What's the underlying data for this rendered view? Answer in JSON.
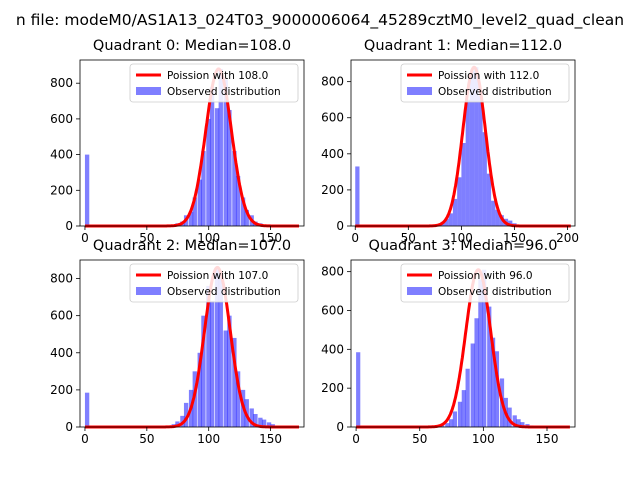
{
  "suptitle": "n file: modeM0/AS1A13_024T03_9000006064_45289cztM0_level2_quad_clean",
  "colors": {
    "fit": "#ff0000",
    "hist": "#0000ff",
    "axis": "#000000",
    "legend_border": "#cccccc"
  },
  "chart_data": [
    {
      "type": "bar",
      "title": "Quadrant 0: Median=108.0",
      "xlim": [
        -4,
        177
      ],
      "ylim": [
        0,
        930
      ],
      "xticks": [
        0,
        50,
        100,
        150
      ],
      "yticks": [
        0,
        200,
        400,
        600,
        800
      ],
      "grid": false,
      "legend_position": "upper right",
      "series": [
        {
          "name": "Poission with 108.0",
          "kind": "line",
          "mean": 108.0,
          "peak": 880
        },
        {
          "name": "Observed distribution",
          "kind": "histogram",
          "bin_width": 3.5,
          "bins": [
            [
              0,
              400
            ],
            [
              66,
              4
            ],
            [
              70,
              7
            ],
            [
              73,
              15
            ],
            [
              77,
              25
            ],
            [
              80,
              60
            ],
            [
              84,
              80
            ],
            [
              87,
              160
            ],
            [
              91,
              260
            ],
            [
              94,
              420
            ],
            [
              98,
              600
            ],
            [
              101,
              780
            ],
            [
              105,
              660
            ],
            [
              108,
              880
            ],
            [
              112,
              820
            ],
            [
              115,
              650
            ],
            [
              119,
              420
            ],
            [
              122,
              280
            ],
            [
              126,
              160
            ],
            [
              129,
              90
            ],
            [
              133,
              60
            ],
            [
              136,
              25
            ],
            [
              140,
              15
            ],
            [
              143,
              8
            ],
            [
              147,
              4
            ],
            [
              150,
              2
            ]
          ]
        }
      ]
    },
    {
      "type": "bar",
      "title": "Quadrant 1: Median=112.0",
      "xlim": [
        -4,
        207
      ],
      "ylim": [
        0,
        920
      ],
      "xticks": [
        0,
        50,
        100,
        150,
        200
      ],
      "yticks": [
        0,
        200,
        400,
        600,
        800
      ],
      "grid": false,
      "legend_position": "upper right",
      "series": [
        {
          "name": "Poission with 112.0",
          "kind": "line",
          "mean": 112.0,
          "peak": 880
        },
        {
          "name": "Observed distribution",
          "kind": "histogram",
          "bin_width": 4,
          "bins": [
            [
              0,
              330
            ],
            [
              68,
              4
            ],
            [
              72,
              6
            ],
            [
              76,
              10
            ],
            [
              80,
              20
            ],
            [
              84,
              40
            ],
            [
              88,
              70
            ],
            [
              92,
              150
            ],
            [
              96,
              270
            ],
            [
              100,
              460
            ],
            [
              104,
              700
            ],
            [
              108,
              860
            ],
            [
              112,
              880
            ],
            [
              116,
              720
            ],
            [
              120,
              520
            ],
            [
              124,
              290
            ],
            [
              128,
              140
            ],
            [
              132,
              90
            ],
            [
              136,
              60
            ],
            [
              140,
              40
            ],
            [
              144,
              30
            ],
            [
              148,
              15
            ],
            [
              152,
              8
            ],
            [
              156,
              4
            ],
            [
              160,
              2
            ]
          ]
        }
      ]
    },
    {
      "type": "bar",
      "title": "Quadrant 2: Median=107.0",
      "xlim": [
        -4,
        177
      ],
      "ylim": [
        0,
        900
      ],
      "xticks": [
        0,
        50,
        100,
        150
      ],
      "yticks": [
        0,
        200,
        400,
        600,
        800
      ],
      "grid": false,
      "legend_position": "upper right",
      "series": [
        {
          "name": "Poission with 107.0",
          "kind": "line",
          "mean": 107.0,
          "peak": 860
        },
        {
          "name": "Observed distribution",
          "kind": "histogram",
          "bin_width": 3.5,
          "bins": [
            [
              0,
              185
            ],
            [
              62,
              5
            ],
            [
              66,
              8
            ],
            [
              70,
              15
            ],
            [
              73,
              30
            ],
            [
              77,
              60
            ],
            [
              80,
              130
            ],
            [
              84,
              200
            ],
            [
              87,
              300
            ],
            [
              91,
              400
            ],
            [
              94,
              600
            ],
            [
              98,
              760
            ],
            [
              101,
              680
            ],
            [
              105,
              860
            ],
            [
              108,
              800
            ],
            [
              112,
              520
            ],
            [
              115,
              600
            ],
            [
              119,
              480
            ],
            [
              122,
              300
            ],
            [
              126,
              200
            ],
            [
              129,
              150
            ],
            [
              133,
              100
            ],
            [
              136,
              70
            ],
            [
              140,
              50
            ],
            [
              143,
              40
            ],
            [
              147,
              25
            ],
            [
              150,
              15
            ],
            [
              154,
              8
            ]
          ]
        }
      ]
    },
    {
      "type": "bar",
      "title": "Quadrant 3: Median=96.0",
      "xlim": [
        -4,
        172
      ],
      "ylim": [
        0,
        860
      ],
      "xticks": [
        0,
        50,
        100,
        150
      ],
      "yticks": [
        0,
        200,
        400,
        600,
        800
      ],
      "grid": false,
      "legend_position": "upper right",
      "series": [
        {
          "name": "Poission with 96.0",
          "kind": "line",
          "mean": 96.0,
          "peak": 810
        },
        {
          "name": "Observed distribution",
          "kind": "histogram",
          "bin_width": 3.3,
          "bins": [
            [
              0,
              385
            ],
            [
              60,
              4
            ],
            [
              63,
              8
            ],
            [
              66,
              12
            ],
            [
              70,
              20
            ],
            [
              73,
              40
            ],
            [
              76,
              80
            ],
            [
              80,
              130
            ],
            [
              83,
              190
            ],
            [
              86,
              300
            ],
            [
              90,
              430
            ],
            [
              93,
              560
            ],
            [
              96,
              760
            ],
            [
              99,
              810
            ],
            [
              103,
              620
            ],
            [
              106,
              460
            ],
            [
              109,
              390
            ],
            [
              113,
              250
            ],
            [
              116,
              150
            ],
            [
              119,
              100
            ],
            [
              123,
              60
            ],
            [
              126,
              40
            ],
            [
              129,
              25
            ],
            [
              133,
              15
            ],
            [
              136,
              8
            ],
            [
              139,
              4
            ]
          ]
        }
      ]
    }
  ]
}
